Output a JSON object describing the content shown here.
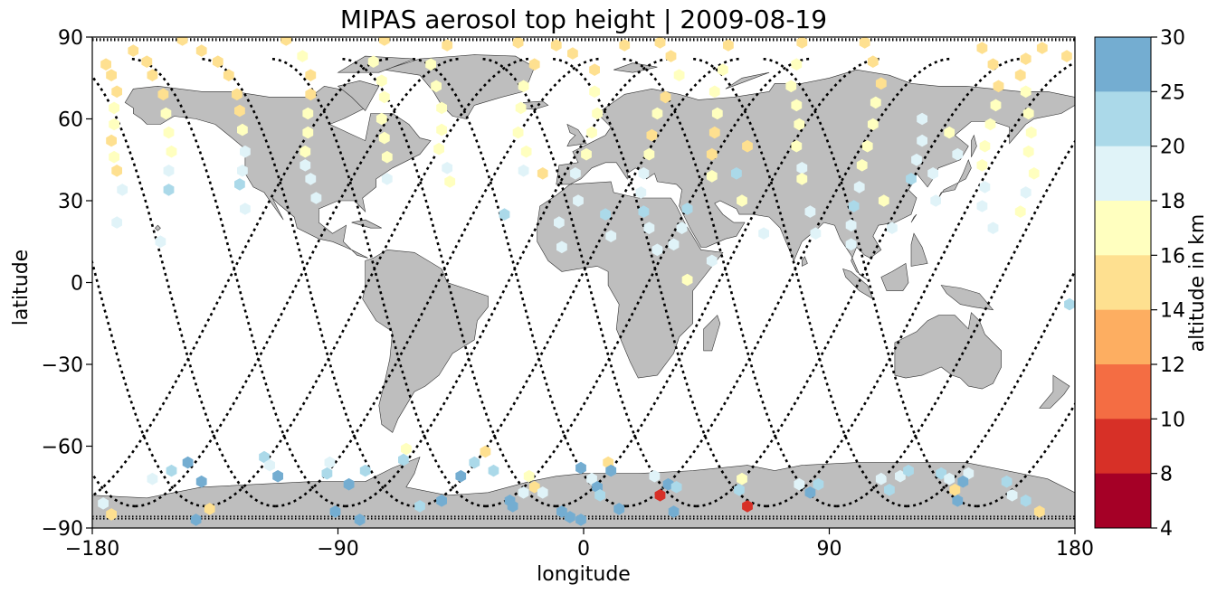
{
  "chart_data": {
    "type": "scatter",
    "title": "MIPAS aerosol top height | 2009-08-19",
    "xlabel": "longitude",
    "ylabel": "latitude",
    "xlim": [
      -180,
      180
    ],
    "ylim": [
      -90,
      90
    ],
    "xticks": [
      -180,
      -90,
      0,
      90,
      180
    ],
    "xtick_labels": [
      "−180",
      "−90",
      "0",
      "90",
      "180"
    ],
    "yticks": [
      90,
      60,
      30,
      0,
      -30,
      -60,
      -90
    ],
    "ytick_labels": [
      "90",
      "60",
      "30",
      "0",
      "−30",
      "−60",
      "−90"
    ],
    "background_map": "world coastlines, land filled gray",
    "land_color": "#bebebe",
    "track_color": "#000000",
    "colorbar": {
      "label": "altitude in km",
      "ticks": [
        30,
        25,
        20,
        18,
        16,
        14,
        12,
        10,
        8,
        4
      ],
      "levels": [
        4,
        8,
        10,
        12,
        14,
        16,
        18,
        20,
        25,
        30
      ],
      "colors": [
        "#a50026",
        "#d73027",
        "#f46d43",
        "#fdae61",
        "#fee090",
        "#ffffbf",
        "#e0f3f8",
        "#abd9e9",
        "#74add1",
        "#4575b4",
        "#313695"
      ]
    },
    "points": [
      [
        -175,
        80,
        13
      ],
      [
        -173,
        76,
        13
      ],
      [
        -171,
        70,
        13
      ],
      [
        -172,
        64,
        15
      ],
      [
        -172,
        58,
        15
      ],
      [
        -173,
        52,
        13
      ],
      [
        -172,
        46,
        15
      ],
      [
        -171,
        41,
        13
      ],
      [
        -169,
        34,
        17
      ],
      [
        -171,
        22,
        17
      ],
      [
        -165,
        85,
        13
      ],
      [
        -160,
        81,
        13
      ],
      [
        -158,
        76,
        13
      ],
      [
        -154,
        69,
        13
      ],
      [
        -153,
        62,
        15
      ],
      [
        -152,
        55,
        15
      ],
      [
        -151,
        48,
        15
      ],
      [
        -152,
        41,
        17
      ],
      [
        -152,
        34,
        19
      ],
      [
        -155,
        15,
        17
      ],
      [
        -147,
        89,
        13
      ],
      [
        -140,
        85,
        13
      ],
      [
        -134,
        81,
        13
      ],
      [
        -130,
        76,
        13
      ],
      [
        -127,
        69,
        13
      ],
      [
        -126,
        63,
        13
      ],
      [
        -125,
        56,
        15
      ],
      [
        -124,
        48,
        17
      ],
      [
        -125,
        41,
        17
      ],
      [
        -126,
        36,
        19
      ],
      [
        -124,
        27,
        17
      ],
      [
        -109,
        89,
        13
      ],
      [
        -103,
        83,
        15
      ],
      [
        -100,
        76,
        13
      ],
      [
        -100,
        69,
        13
      ],
      [
        -101,
        62,
        15
      ],
      [
        -101,
        55,
        15
      ],
      [
        -102,
        48,
        15
      ],
      [
        -102,
        43,
        17
      ],
      [
        -100,
        38,
        17
      ],
      [
        -98,
        31,
        17
      ],
      [
        -73,
        89,
        13
      ],
      [
        -77,
        81,
        15
      ],
      [
        -74,
        74,
        15
      ],
      [
        -73,
        68,
        15
      ],
      [
        -74,
        60,
        15
      ],
      [
        -73,
        53,
        15
      ],
      [
        -72,
        46,
        15
      ],
      [
        -72,
        38,
        17
      ],
      [
        -50,
        87,
        13
      ],
      [
        -56,
        80,
        15
      ],
      [
        -54,
        72,
        15
      ],
      [
        -52,
        64,
        15
      ],
      [
        -52,
        56,
        15
      ],
      [
        -53,
        49,
        15
      ],
      [
        -50,
        42,
        17
      ],
      [
        -49,
        37,
        15
      ],
      [
        -24,
        88,
        13
      ],
      [
        -18,
        80,
        13
      ],
      [
        -22,
        72,
        15
      ],
      [
        -23,
        64,
        15
      ],
      [
        -24,
        55,
        15
      ],
      [
        -21,
        48,
        15
      ],
      [
        -22,
        41,
        17
      ],
      [
        -29,
        25,
        19
      ],
      [
        -15,
        40,
        13
      ],
      [
        -10,
        87,
        13
      ],
      [
        -4,
        84,
        13
      ],
      [
        4,
        78,
        13
      ],
      [
        4,
        70,
        15
      ],
      [
        5,
        62,
        15
      ],
      [
        3,
        55,
        15
      ],
      [
        1,
        47,
        15
      ],
      [
        -3,
        40,
        17
      ],
      [
        -2,
        30,
        17
      ],
      [
        -9,
        22,
        17
      ],
      [
        -8,
        13,
        17
      ],
      [
        8,
        25,
        19
      ],
      [
        10,
        17,
        17
      ],
      [
        15,
        87,
        13
      ],
      [
        28,
        88,
        13
      ],
      [
        32,
        83,
        13
      ],
      [
        35,
        76,
        15
      ],
      [
        30,
        68,
        13
      ],
      [
        27,
        62,
        15
      ],
      [
        25,
        54,
        13
      ],
      [
        24,
        47,
        15
      ],
      [
        22,
        40,
        17
      ],
      [
        21,
        33,
        17
      ],
      [
        22,
        26,
        19
      ],
      [
        24,
        20,
        17
      ],
      [
        27,
        12,
        17
      ],
      [
        33,
        14,
        17
      ],
      [
        36,
        20,
        17
      ],
      [
        47,
        8,
        17
      ],
      [
        38,
        1,
        15
      ],
      [
        38,
        27,
        19
      ],
      [
        53,
        87,
        13
      ],
      [
        51,
        78,
        15
      ],
      [
        48,
        70,
        15
      ],
      [
        49,
        62,
        15
      ],
      [
        48,
        55,
        13
      ],
      [
        47,
        47,
        13
      ],
      [
        47,
        39,
        15
      ],
      [
        56,
        40,
        19
      ],
      [
        58,
        30,
        15
      ],
      [
        66,
        18,
        17
      ],
      [
        60,
        50,
        13
      ],
      [
        80,
        88,
        13
      ],
      [
        78,
        80,
        15
      ],
      [
        76,
        72,
        15
      ],
      [
        78,
        65,
        15
      ],
      [
        79,
        58,
        15
      ],
      [
        78,
        50,
        15
      ],
      [
        80,
        42,
        17
      ],
      [
        80,
        38,
        15
      ],
      [
        83,
        26,
        17
      ],
      [
        85,
        18,
        17
      ],
      [
        103,
        88,
        13
      ],
      [
        106,
        81,
        13
      ],
      [
        109,
        73,
        13
      ],
      [
        107,
        66,
        15
      ],
      [
        106,
        58,
        15
      ],
      [
        104,
        50,
        15
      ],
      [
        102,
        43,
        15
      ],
      [
        101,
        35,
        17
      ],
      [
        99,
        28,
        19
      ],
      [
        98,
        21,
        17
      ],
      [
        98,
        14,
        17
      ],
      [
        110,
        30,
        15
      ],
      [
        113,
        20,
        17
      ],
      [
        124,
        60,
        17
      ],
      [
        124,
        52,
        17
      ],
      [
        122,
        45,
        17
      ],
      [
        120,
        38,
        19
      ],
      [
        128,
        40,
        17
      ],
      [
        129,
        30,
        17
      ],
      [
        134,
        55,
        15
      ],
      [
        137,
        47,
        17
      ],
      [
        146,
        86,
        13
      ],
      [
        150,
        80,
        13
      ],
      [
        152,
        72,
        13
      ],
      [
        151,
        65,
        15
      ],
      [
        149,
        58,
        15
      ],
      [
        147,
        50,
        15
      ],
      [
        146,
        43,
        15
      ],
      [
        147,
        35,
        17
      ],
      [
        146,
        28,
        17
      ],
      [
        150,
        20,
        17
      ],
      [
        168,
        86,
        13
      ],
      [
        162,
        82,
        13
      ],
      [
        160,
        76,
        13
      ],
      [
        162,
        70,
        15
      ],
      [
        163,
        62,
        15
      ],
      [
        164,
        55,
        15
      ],
      [
        163,
        48,
        15
      ],
      [
        165,
        40,
        15
      ],
      [
        162,
        33,
        17
      ],
      [
        160,
        26,
        15
      ],
      [
        177,
        83,
        13
      ],
      [
        178,
        -8,
        19
      ],
      [
        -176,
        -81,
        17
      ],
      [
        -173,
        -85,
        13
      ],
      [
        -158,
        -72,
        16
      ],
      [
        -151,
        -69,
        19
      ],
      [
        -145,
        -66,
        21
      ],
      [
        -140,
        -73,
        22
      ],
      [
        -137,
        -83,
        13
      ],
      [
        -142,
        -87,
        22
      ],
      [
        -117,
        -64,
        19
      ],
      [
        -115,
        -67,
        17
      ],
      [
        -112,
        -71,
        21
      ],
      [
        -94,
        -70,
        19
      ],
      [
        -93,
        -66,
        17
      ],
      [
        -86,
        -74,
        21
      ],
      [
        -80,
        -69,
        19
      ],
      [
        -91,
        -84,
        22
      ],
      [
        -82,
        -87,
        22
      ],
      [
        -65,
        -61,
        15
      ],
      [
        -66,
        -65,
        19
      ],
      [
        -60,
        -82,
        19
      ],
      [
        -52,
        -80,
        22
      ],
      [
        -45,
        -71,
        21
      ],
      [
        -40,
        -66,
        19
      ],
      [
        -33,
        -69,
        19
      ],
      [
        -36,
        -62,
        13
      ],
      [
        -22,
        -77,
        17
      ],
      [
        -27,
        -80,
        22
      ],
      [
        -26,
        -82,
        22
      ],
      [
        -20,
        -71,
        15
      ],
      [
        -18,
        -75,
        13
      ],
      [
        -15,
        -77,
        17
      ],
      [
        -8,
        -84,
        22
      ],
      [
        -5,
        -86,
        22
      ],
      [
        -1,
        -87,
        22
      ],
      [
        -1,
        -68,
        21
      ],
      [
        3,
        -72,
        17
      ],
      [
        5,
        -75,
        21
      ],
      [
        6,
        -78,
        19
      ],
      [
        9,
        -66,
        13
      ],
      [
        10,
        -69,
        21
      ],
      [
        13,
        -83,
        22
      ],
      [
        26,
        -71,
        17
      ],
      [
        28,
        -78,
        5
      ],
      [
        31,
        -74,
        21
      ],
      [
        34,
        -75,
        19
      ],
      [
        33,
        -84,
        22
      ],
      [
        58,
        -72,
        15
      ],
      [
        57,
        -76,
        19
      ],
      [
        60,
        -82,
        5
      ],
      [
        79,
        -74,
        17
      ],
      [
        83,
        -77,
        21
      ],
      [
        86,
        -74,
        19
      ],
      [
        109,
        -72,
        17
      ],
      [
        116,
        -71,
        17
      ],
      [
        119,
        -69,
        19
      ],
      [
        112,
        -76,
        19
      ],
      [
        131,
        -70,
        19
      ],
      [
        134,
        -72,
        17
      ],
      [
        136,
        -76,
        13
      ],
      [
        137,
        -80,
        21
      ],
      [
        141,
        -70,
        17
      ],
      [
        139,
        -73,
        21
      ],
      [
        155,
        -73,
        19
      ],
      [
        157,
        -78,
        17
      ],
      [
        162,
        -80,
        19
      ],
      [
        167,
        -84,
        13
      ]
    ]
  }
}
